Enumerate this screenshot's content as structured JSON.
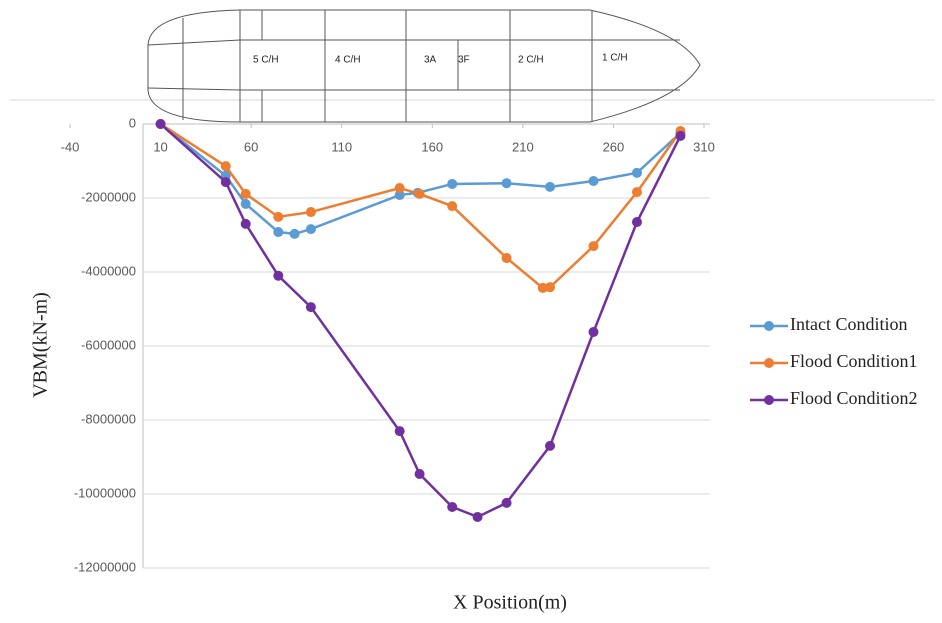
{
  "diagram": {
    "compartments": [
      "5 C/H",
      "4 C/H",
      "3A",
      "3F",
      "2 C/H",
      "1 C/H"
    ]
  },
  "chart_data": {
    "type": "line",
    "xlabel": "X Position(m)",
    "ylabel": "VBM(kN-m)",
    "xlim": [
      -40,
      310
    ],
    "xticks": [
      -40,
      10,
      60,
      110,
      160,
      210,
      260,
      310
    ],
    "ylim": [
      -12000000,
      0
    ],
    "yticks": [
      0,
      -2000000,
      -4000000,
      -6000000,
      -8000000,
      -10000000,
      -12000000
    ],
    "grid": true,
    "legend": "right",
    "series": [
      {
        "name": "Intact Condition",
        "color": "#5b9bd5",
        "x": [
          10,
          46,
          57,
          75,
          84,
          93,
          142,
          152,
          171,
          201,
          225,
          249,
          273,
          297
        ],
        "values": [
          0,
          -1400000,
          -2160000,
          -2920000,
          -2970000,
          -2840000,
          -1920000,
          -1860000,
          -1620000,
          -1600000,
          -1700000,
          -1540000,
          -1320000,
          -240000
        ]
      },
      {
        "name": "Flood Condition1",
        "color": "#ed7d31",
        "x": [
          10,
          46,
          57,
          75,
          93,
          142,
          153,
          171,
          201,
          221,
          225,
          249,
          273,
          297
        ],
        "values": [
          0,
          -1140000,
          -1890000,
          -2510000,
          -2380000,
          -1730000,
          -1890000,
          -2220000,
          -3620000,
          -4430000,
          -4410000,
          -3300000,
          -1840000,
          -190000
        ]
      },
      {
        "name": "Flood Condition2",
        "color": "#7030a0",
        "x": [
          10,
          46,
          57,
          75,
          93,
          142,
          153,
          171,
          185,
          201,
          225,
          249,
          273,
          297
        ],
        "values": [
          0,
          -1570000,
          -2700000,
          -4100000,
          -4950000,
          -8300000,
          -9460000,
          -10350000,
          -10620000,
          -10240000,
          -8700000,
          -5620000,
          -2650000,
          -320000
        ]
      }
    ]
  }
}
